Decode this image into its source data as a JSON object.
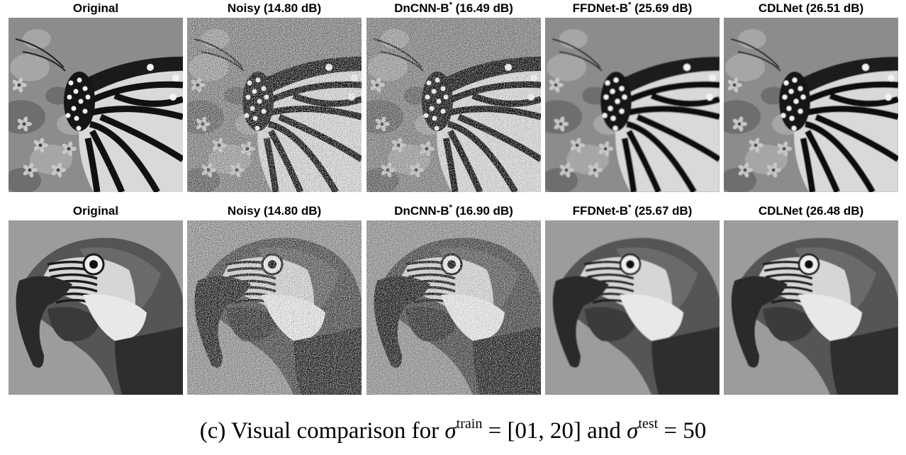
{
  "figure": {
    "rows": [
      {
        "subject": "butterfly",
        "panels": [
          {
            "label": "Original",
            "star": false,
            "score": ""
          },
          {
            "label": "Noisy",
            "star": false,
            "score": "(14.80 dB)"
          },
          {
            "label": "DnCNN-B",
            "star": true,
            "score": "(16.49 dB)"
          },
          {
            "label": "FFDNet-B",
            "star": true,
            "score": "(25.69 dB)"
          },
          {
            "label": "CDLNet",
            "star": false,
            "score": "(26.51 dB)"
          }
        ]
      },
      {
        "subject": "parrot",
        "panels": [
          {
            "label": "Original",
            "star": false,
            "score": ""
          },
          {
            "label": "Noisy",
            "star": false,
            "score": "(14.80 dB)"
          },
          {
            "label": "DnCNN-B",
            "star": true,
            "score": "(16.90 dB)"
          },
          {
            "label": "FFDNet-B",
            "star": true,
            "score": "(25.67 dB)"
          },
          {
            "label": "CDLNet",
            "star": false,
            "score": "(26.48 dB)"
          }
        ]
      }
    ],
    "caption": {
      "prefix": "(c) Visual comparison for",
      "sym1": "σ",
      "sup1": "train",
      "eq1": " = [01, 20] and ",
      "sym2": "σ",
      "sup2": "test",
      "eq2": " = 50"
    }
  }
}
